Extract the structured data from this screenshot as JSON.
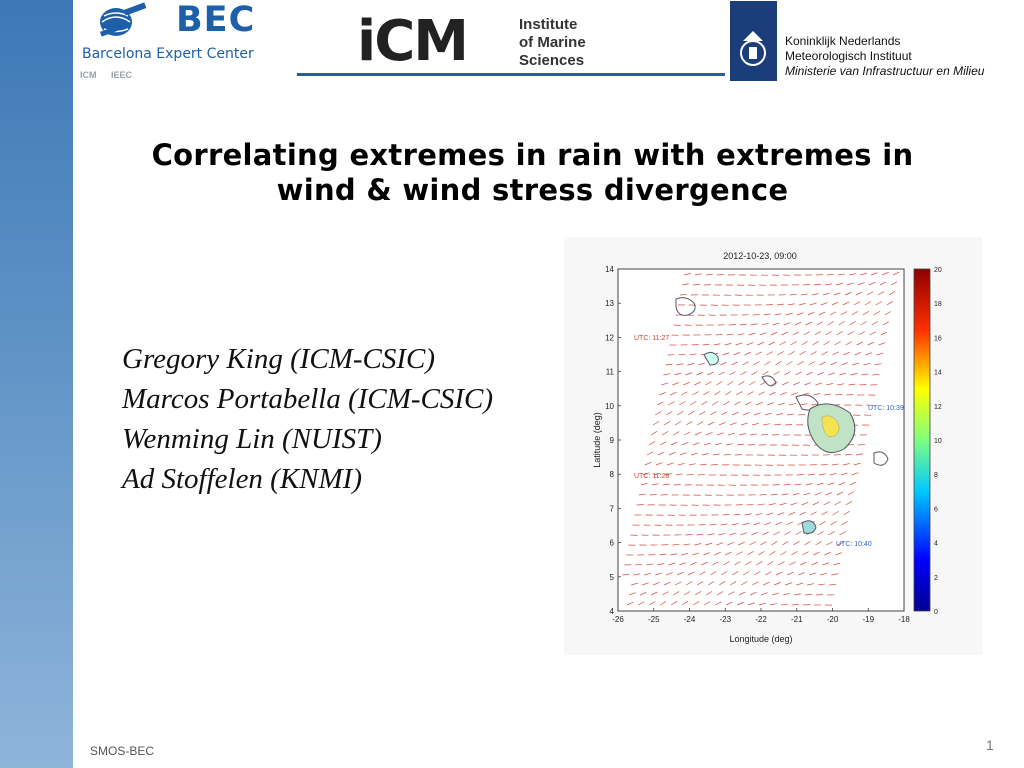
{
  "header": {
    "bec": {
      "acronym": "BEC",
      "name": "Barcelona Expert Center",
      "partners": [
        "ICM",
        "IEEC"
      ]
    },
    "icm": {
      "mark": "iCM",
      "line1": "Institute",
      "line2": "of Marine",
      "line3": "Sciences"
    },
    "knmi": {
      "line1": "Koninklijk Nederlands",
      "line2": "Meteorologisch Instituut",
      "line3": "Ministerie van Infrastructuur en Milieu"
    }
  },
  "slide": {
    "title_line1": "Correlating extremes in rain with extremes in",
    "title_line2": "wind & wind stress divergence",
    "authors": [
      "Gregory King  (ICM-CSIC)",
      "Marcos Portabella (ICM-CSIC)",
      "Wenming Lin (NUIST)",
      "Ad Stoffelen (KNMI)"
    ]
  },
  "figure": {
    "title": "2012-10-23, 09:00",
    "xlabel": "Longitude (deg)",
    "ylabel": "Latitude (deg)",
    "xticks": [
      "-26",
      "-25",
      "-24",
      "-23",
      "-22",
      "-21",
      "-20",
      "-19",
      "-18"
    ],
    "yticks": [
      "4",
      "5",
      "6",
      "7",
      "8",
      "9",
      "10",
      "11",
      "12",
      "13",
      "14"
    ],
    "colorbar_ticks": [
      "0",
      "2",
      "4",
      "6",
      "8",
      "10",
      "12",
      "14",
      "16",
      "18",
      "20"
    ],
    "annotations": [
      "UTC: 11:27",
      "UTC: 11:28",
      "UTC: 10:39",
      "UTC: 10:40"
    ],
    "arrow_color": "#d9483b"
  },
  "footer": {
    "left": "SMOS-BEC",
    "page": "1"
  }
}
